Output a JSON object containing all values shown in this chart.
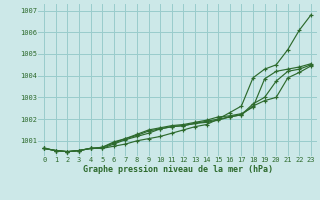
{
  "xlabel": "Graphe pression niveau de la mer (hPa)",
  "background_color": "#cce8e8",
  "grid_color": "#99cccc",
  "line_color": "#2d6a2d",
  "text_color": "#2d6a2d",
  "xlim": [
    -0.5,
    23.5
  ],
  "ylim": [
    1000.3,
    1007.3
  ],
  "yticks": [
    1001,
    1002,
    1003,
    1004,
    1005,
    1006,
    1007
  ],
  "xticks": [
    0,
    1,
    2,
    3,
    4,
    5,
    6,
    7,
    8,
    9,
    10,
    11,
    12,
    13,
    14,
    15,
    16,
    17,
    18,
    19,
    20,
    21,
    22,
    23
  ],
  "series": {
    "line1": [
      1000.65,
      1000.55,
      1000.5,
      1000.55,
      1000.65,
      1000.65,
      1000.75,
      1000.85,
      1001.0,
      1001.1,
      1001.2,
      1001.35,
      1001.5,
      1001.65,
      1001.75,
      1002.0,
      1002.3,
      1002.6,
      1003.9,
      1004.3,
      1004.5,
      1005.2,
      1006.1,
      1006.8
    ],
    "line2": [
      1000.65,
      1000.55,
      1000.5,
      1000.55,
      1000.65,
      1000.7,
      1000.95,
      1001.1,
      1001.3,
      1001.5,
      1001.6,
      1001.7,
      1001.75,
      1001.85,
      1001.95,
      1002.1,
      1002.15,
      1002.25,
      1002.55,
      1003.85,
      1004.2,
      1004.3,
      1004.4,
      1004.55
    ],
    "line3": [
      1000.65,
      1000.55,
      1000.5,
      1000.55,
      1000.65,
      1000.7,
      1000.9,
      1001.1,
      1001.25,
      1001.45,
      1001.55,
      1001.65,
      1001.7,
      1001.8,
      1001.9,
      1002.0,
      1002.1,
      1002.2,
      1002.7,
      1003.0,
      1003.75,
      1004.2,
      1004.3,
      1004.5
    ],
    "line4": [
      1000.65,
      1000.55,
      1000.5,
      1000.55,
      1000.65,
      1000.65,
      1000.85,
      1001.05,
      1001.2,
      1001.35,
      1001.55,
      1001.65,
      1001.7,
      1001.8,
      1001.85,
      1001.95,
      1002.1,
      1002.2,
      1002.6,
      1002.85,
      1003.0,
      1003.9,
      1004.15,
      1004.45
    ]
  }
}
